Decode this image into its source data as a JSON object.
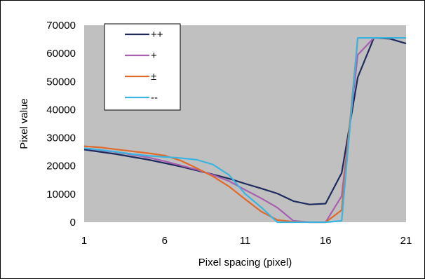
{
  "chart_data": {
    "type": "line",
    "xlabel": "Pixel spacing (pixel)",
    "ylabel": "Pixel value",
    "xlim": [
      1,
      21
    ],
    "ylim": [
      0,
      70000
    ],
    "x_ticks": [
      "1",
      "6",
      "11",
      "16",
      "21"
    ],
    "y_ticks": [
      "0",
      "10000",
      "20000",
      "30000",
      "40000",
      "50000",
      "60000",
      "70000"
    ],
    "grid": false,
    "plot_background": "#c0c0c0",
    "legend_position": "top-left",
    "x": [
      1,
      2,
      3,
      4,
      5,
      6,
      7,
      8,
      9,
      10,
      11,
      12,
      13,
      14,
      15,
      16,
      17,
      18,
      19,
      20,
      21
    ],
    "series": [
      {
        "name": "++",
        "color": "#1f2a5c",
        "values": [
          25800,
          25000,
          24200,
          23200,
          22200,
          21000,
          19800,
          18400,
          17000,
          15500,
          13700,
          12000,
          10200,
          7500,
          6300,
          6600,
          17500,
          51500,
          65500,
          65200,
          63500
        ]
      },
      {
        "name": "+",
        "color": "#a860b0",
        "values": [
          26300,
          25600,
          24900,
          24000,
          23000,
          21700,
          20200,
          18700,
          16800,
          14600,
          11500,
          8500,
          5200,
          500,
          0,
          0,
          9300,
          59500,
          65500,
          65500,
          65500
        ]
      },
      {
        "name": "±",
        "color": "#e06a2a",
        "values": [
          27000,
          26600,
          25900,
          25200,
          24500,
          23700,
          21900,
          19200,
          16300,
          12700,
          8200,
          3800,
          800,
          200,
          0,
          0,
          4300,
          65500,
          65500,
          65500,
          65500
        ]
      },
      {
        "name": "--",
        "color": "#3ab4e0",
        "values": [
          26300,
          25700,
          25000,
          24200,
          23600,
          23200,
          22800,
          22200,
          20500,
          16800,
          10100,
          5300,
          0,
          0,
          0,
          0,
          500,
          65500,
          65500,
          65500,
          65500
        ]
      }
    ]
  }
}
